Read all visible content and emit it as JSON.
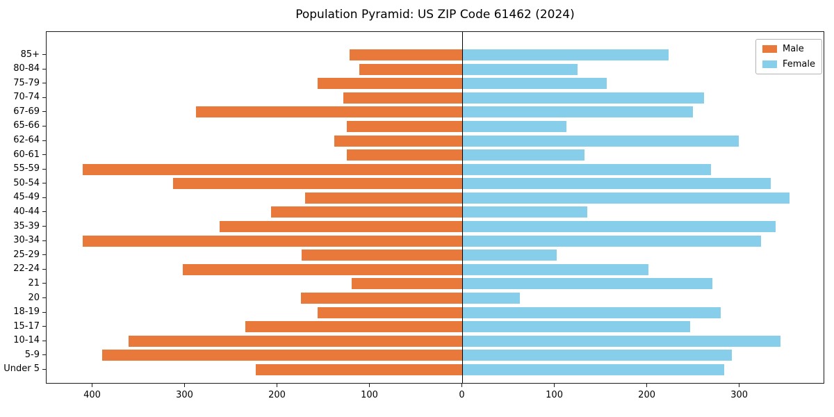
{
  "title": "Population Pyramid: US ZIP Code 61462 (2024)",
  "chart_data": {
    "type": "bar",
    "orientation": "horizontal-pyramid",
    "title": "Population Pyramid: US ZIP Code 61462 (2024)",
    "categories_top_to_bottom": [
      "85+",
      "80-84",
      "75-79",
      "70-74",
      "67-69",
      "65-66",
      "62-64",
      "60-61",
      "55-59",
      "50-54",
      "45-49",
      "40-44",
      "35-39",
      "30-34",
      "25-29",
      "22-24",
      "21",
      "20",
      "18-19",
      "15-17",
      "10-14",
      "5-9",
      "Under 5"
    ],
    "series": [
      {
        "name": "Male",
        "side": "left",
        "color": "#e8793a",
        "values": [
          122,
          112,
          157,
          129,
          288,
          125,
          139,
          125,
          411,
          313,
          170,
          207,
          263,
          411,
          174,
          303,
          120,
          175,
          157,
          235,
          361,
          390,
          224
        ]
      },
      {
        "name": "Female",
        "side": "right",
        "color": "#87ceeb",
        "values": [
          223,
          124,
          156,
          261,
          249,
          112,
          299,
          132,
          269,
          333,
          354,
          135,
          339,
          323,
          102,
          201,
          270,
          62,
          279,
          246,
          344,
          291,
          283
        ]
      }
    ],
    "xlim": [
      -450,
      392
    ],
    "xticks": [
      -400,
      -300,
      -200,
      -100,
      0,
      100,
      200,
      300
    ],
    "xtick_labels": [
      "400",
      "300",
      "200",
      "100",
      "0",
      "100",
      "200",
      "300"
    ],
    "grid": false,
    "zero_line": true,
    "legend_position": "upper-right"
  },
  "legend": {
    "male_label": "Male",
    "female_label": "Female"
  }
}
